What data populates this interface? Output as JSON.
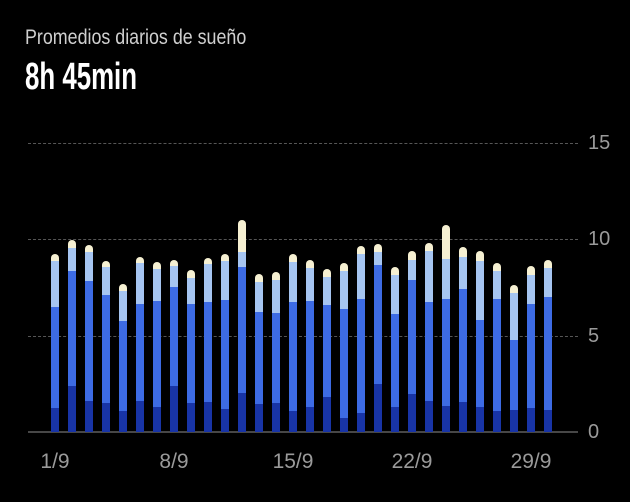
{
  "header": {
    "title": "Promedios diarios de sueño",
    "average": "8h 45min"
  },
  "chart_data": {
    "type": "bar",
    "stacked": true,
    "title": "Promedios diarios de sueño",
    "average_label": "8h 45min",
    "unit": "hours",
    "ylim": [
      0,
      15
    ],
    "yticks": [
      0,
      5,
      10,
      15
    ],
    "y_axis_side": "right",
    "grid": "horizontal-dashed",
    "legend": "none",
    "x_tick_labels": [
      {
        "label": "1/9",
        "index": 0
      },
      {
        "label": "8/9",
        "index": 7
      },
      {
        "label": "15/9",
        "index": 14
      },
      {
        "label": "22/9",
        "index": 21
      },
      {
        "label": "29/9",
        "index": 28
      }
    ],
    "stack_order": [
      "deep_sleep",
      "light_sleep",
      "rem",
      "awake"
    ],
    "segment_colors": {
      "deep_sleep": "#1834A6",
      "light_sleep": "#3D6BE4",
      "rem": "#A6C5F1",
      "awake": "#F6F0D2"
    },
    "bars": [
      {
        "date": "1/9",
        "deep_sleep": 1.25,
        "light_sleep": 5.25,
        "rem": 2.4,
        "awake": 0.35
      },
      {
        "date": "2/9",
        "deep_sleep": 2.4,
        "light_sleep": 5.95,
        "rem": 1.2,
        "awake": 0.4
      },
      {
        "date": "3/9",
        "deep_sleep": 1.6,
        "light_sleep": 6.25,
        "rem": 1.5,
        "awake": 0.35
      },
      {
        "date": "4/9",
        "deep_sleep": 1.5,
        "light_sleep": 5.6,
        "rem": 1.45,
        "awake": 0.35
      },
      {
        "date": "5/9",
        "deep_sleep": 1.1,
        "light_sleep": 4.65,
        "rem": 1.55,
        "awake": 0.4
      },
      {
        "date": "6/9",
        "deep_sleep": 1.6,
        "light_sleep": 5.05,
        "rem": 2.1,
        "awake": 0.35
      },
      {
        "date": "7/9",
        "deep_sleep": 1.3,
        "light_sleep": 5.5,
        "rem": 1.65,
        "awake": 0.35
      },
      {
        "date": "8/9",
        "deep_sleep": 2.4,
        "light_sleep": 5.15,
        "rem": 1.05,
        "awake": 0.35
      },
      {
        "date": "9/9",
        "deep_sleep": 1.5,
        "light_sleep": 5.15,
        "rem": 1.35,
        "awake": 0.4
      },
      {
        "date": "10/9",
        "deep_sleep": 1.55,
        "light_sleep": 5.2,
        "rem": 1.95,
        "awake": 0.35
      },
      {
        "date": "11/9",
        "deep_sleep": 1.2,
        "light_sleep": 5.65,
        "rem": 2.0,
        "awake": 0.4
      },
      {
        "date": "12/9",
        "deep_sleep": 2.0,
        "light_sleep": 6.55,
        "rem": 0.8,
        "awake": 1.65
      },
      {
        "date": "13/9",
        "deep_sleep": 1.45,
        "light_sleep": 4.8,
        "rem": 1.55,
        "awake": 0.4
      },
      {
        "date": "14/9",
        "deep_sleep": 1.5,
        "light_sleep": 4.65,
        "rem": 1.75,
        "awake": 0.4
      },
      {
        "date": "15/9",
        "deep_sleep": 1.1,
        "light_sleep": 5.65,
        "rem": 2.05,
        "awake": 0.45
      },
      {
        "date": "16/9",
        "deep_sleep": 1.3,
        "light_sleep": 5.5,
        "rem": 1.7,
        "awake": 0.45
      },
      {
        "date": "17/9",
        "deep_sleep": 1.8,
        "light_sleep": 4.8,
        "rem": 1.45,
        "awake": 0.4
      },
      {
        "date": "18/9",
        "deep_sleep": 0.75,
        "light_sleep": 5.65,
        "rem": 1.95,
        "awake": 0.4
      },
      {
        "date": "19/9",
        "deep_sleep": 1.0,
        "light_sleep": 5.9,
        "rem": 2.35,
        "awake": 0.4
      },
      {
        "date": "20/9",
        "deep_sleep": 2.5,
        "light_sleep": 6.15,
        "rem": 0.7,
        "awake": 0.4
      },
      {
        "date": "21/9",
        "deep_sleep": 1.3,
        "light_sleep": 4.85,
        "rem": 2.0,
        "awake": 0.4
      },
      {
        "date": "22/9",
        "deep_sleep": 1.95,
        "light_sleep": 5.95,
        "rem": 1.05,
        "awake": 0.45
      },
      {
        "date": "23/9",
        "deep_sleep": 1.6,
        "light_sleep": 5.15,
        "rem": 2.65,
        "awake": 0.4
      },
      {
        "date": "24/9",
        "deep_sleep": 1.35,
        "light_sleep": 5.55,
        "rem": 2.1,
        "awake": 1.75
      },
      {
        "date": "25/9",
        "deep_sleep": 1.55,
        "light_sleep": 5.85,
        "rem": 1.7,
        "awake": 0.5
      },
      {
        "date": "26/9",
        "deep_sleep": 1.3,
        "light_sleep": 4.5,
        "rem": 3.1,
        "awake": 0.5
      },
      {
        "date": "27/9",
        "deep_sleep": 1.1,
        "light_sleep": 5.8,
        "rem": 1.45,
        "awake": 0.4
      },
      {
        "date": "28/9",
        "deep_sleep": 1.15,
        "light_sleep": 3.6,
        "rem": 2.45,
        "awake": 0.45
      },
      {
        "date": "29/9",
        "deep_sleep": 1.25,
        "light_sleep": 5.4,
        "rem": 1.5,
        "awake": 0.45
      },
      {
        "date": "30/9",
        "deep_sleep": 1.15,
        "light_sleep": 5.85,
        "rem": 1.5,
        "awake": 0.45
      }
    ]
  },
  "colors": {
    "background": "#000000",
    "title_text": "#CFCFCF",
    "value_text": "#FFFFFF",
    "axis_label": "#9A9A9A",
    "gridline": "#565656",
    "axis_line": "#474747"
  }
}
